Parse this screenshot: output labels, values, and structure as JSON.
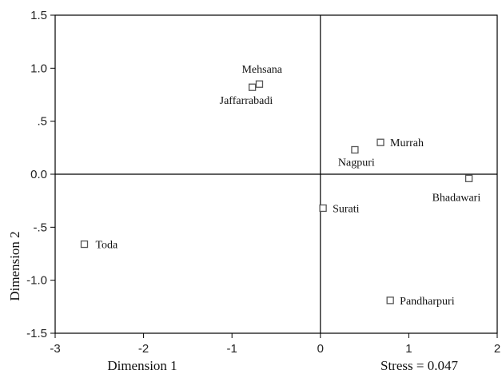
{
  "chart_data": {
    "type": "scatter",
    "xlabel": "Dimension 1",
    "ylabel": "Dimension 2",
    "xlim": [
      -3,
      2
    ],
    "ylim": [
      -1.5,
      1.5
    ],
    "x_ticks": [
      "-3",
      "-2",
      "-1",
      "0",
      "1",
      "2"
    ],
    "y_ticks": [
      "1.5",
      "1.0",
      ".5",
      "0.0",
      "-.5",
      "-1.0",
      "-1.5"
    ],
    "annotation": "Stress = 0.047",
    "grid": false,
    "reference_lines": [
      0,
      0
    ],
    "points": [
      {
        "label": "Mehsana",
        "x": -0.69,
        "y": 0.85
      },
      {
        "label": "Jaffarrabadi",
        "x": -0.77,
        "y": 0.82
      },
      {
        "label": "Murrah",
        "x": 0.68,
        "y": 0.3
      },
      {
        "label": "Nagpuri",
        "x": 0.39,
        "y": 0.23
      },
      {
        "label": "Bhadawari",
        "x": 1.68,
        "y": -0.04
      },
      {
        "label": "Surati",
        "x": 0.03,
        "y": -0.32
      },
      {
        "label": "Toda",
        "x": -2.67,
        "y": -0.66
      },
      {
        "label": "Pandharpuri",
        "x": 0.79,
        "y": -1.19
      }
    ]
  }
}
